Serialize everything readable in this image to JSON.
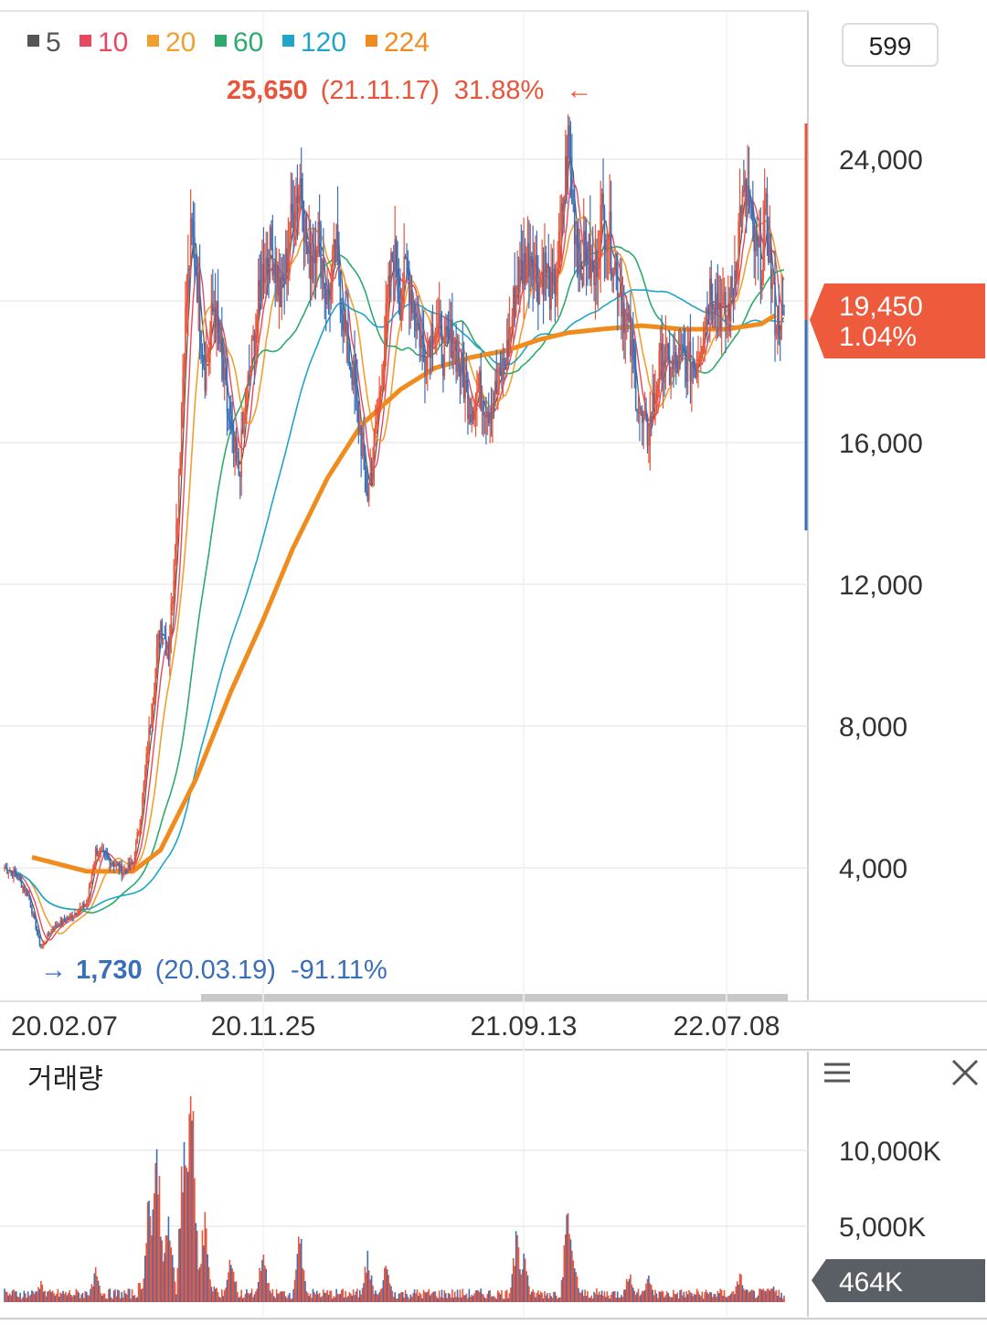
{
  "legend": [
    {
      "label": "5",
      "color": "#555555"
    },
    {
      "label": "10",
      "color": "#e8485f"
    },
    {
      "label": "20",
      "color": "#f0a030"
    },
    {
      "label": "60",
      "color": "#2eaa6a"
    },
    {
      "label": "120",
      "color": "#1ea5c8"
    },
    {
      "label": "224",
      "color": "#f08c1e"
    }
  ],
  "period_count": "599",
  "high_marker": {
    "price": "25,650",
    "date": "(21.11.17)",
    "pct": "31.88%",
    "arrow": "←",
    "color": "#e8553a"
  },
  "low_marker": {
    "price": "1,730",
    "date": "(20.03.19)",
    "pct": "-91.11%",
    "arrow": "→",
    "color": "#3a6fb8"
  },
  "current_badge": {
    "price": "19,450",
    "pct": "1.04%",
    "color": "#ee5a3c"
  },
  "volume_panel": {
    "title": "거래량",
    "menu_icon": "hamburger-menu-icon",
    "close_icon": "close-icon",
    "current_badge": "464K",
    "badge_color": "#5a5f66"
  },
  "chart_data": [
    {
      "type": "candlestick",
      "x_tick_labels": [
        "20.02.07",
        "20.11.25",
        "21.09.13",
        "22.07.08"
      ],
      "y_tick_labels": [
        "4,000",
        "8,000",
        "12,000",
        "16,000",
        "24,000"
      ],
      "y_ticks": [
        4000,
        8000,
        12000,
        16000,
        24000
      ],
      "ylim": [
        0,
        28000
      ],
      "grid": true,
      "up_color": "#e8553a",
      "down_color": "#3a6fb8",
      "close_points": [
        [
          "20.02.07",
          4000
        ],
        [
          "20.02.20",
          3800
        ],
        [
          "20.03.05",
          3200
        ],
        [
          "20.03.19",
          1730
        ],
        [
          "20.04.01",
          2300
        ],
        [
          "20.04.20",
          2600
        ],
        [
          "20.05.10",
          3000
        ],
        [
          "20.05.20",
          4500
        ],
        [
          "20.06.05",
          4200
        ],
        [
          "20.06.20",
          3900
        ],
        [
          "20.07.01",
          4100
        ],
        [
          "20.07.10",
          5500
        ],
        [
          "20.07.20",
          8000
        ],
        [
          "20.08.01",
          11000
        ],
        [
          "20.08.10",
          10000
        ],
        [
          "20.08.20",
          14000
        ],
        [
          "20.08.28",
          19000
        ],
        [
          "20.09.05",
          22000
        ],
        [
          "20.09.10",
          21000
        ],
        [
          "20.09.20",
          18000
        ],
        [
          "20.10.01",
          20000
        ],
        [
          "20.10.10",
          18000
        ],
        [
          "20.10.20",
          16000
        ],
        [
          "20.10.28",
          15000
        ],
        [
          "20.11.05",
          17000
        ],
        [
          "20.11.15",
          19000
        ],
        [
          "20.11.25",
          21000
        ],
        [
          "20.12.05",
          21500
        ],
        [
          "20.12.15",
          20000
        ],
        [
          "20.12.28",
          22500
        ],
        [
          "21.01.05",
          23500
        ],
        [
          "21.01.15",
          21000
        ],
        [
          "21.01.25",
          22000
        ],
        [
          "21.02.05",
          20000
        ],
        [
          "21.02.15",
          21500
        ],
        [
          "21.02.25",
          19000
        ],
        [
          "21.03.05",
          18000
        ],
        [
          "21.03.15",
          16000
        ],
        [
          "21.03.22",
          14500
        ],
        [
          "21.03.30",
          16000
        ],
        [
          "21.04.05",
          17500
        ],
        [
          "21.04.12",
          19500
        ],
        [
          "21.04.20",
          21500
        ],
        [
          "21.04.28",
          20000
        ],
        [
          "21.05.05",
          21000
        ],
        [
          "21.05.15",
          19500
        ],
        [
          "21.05.25",
          18500
        ],
        [
          "21.06.05",
          19500
        ],
        [
          "21.06.15",
          18500
        ],
        [
          "21.06.25",
          19000
        ],
        [
          "21.07.05",
          18000
        ],
        [
          "21.07.15",
          17000
        ],
        [
          "21.07.25",
          17500
        ],
        [
          "21.08.05",
          17000
        ],
        [
          "21.08.15",
          17500
        ],
        [
          "21.08.25",
          18500
        ],
        [
          "21.09.05",
          20500
        ],
        [
          "21.09.13",
          21000
        ],
        [
          "21.09.25",
          21500
        ],
        [
          "21.10.05",
          20500
        ],
        [
          "21.10.15",
          21000
        ],
        [
          "21.10.25",
          20000
        ],
        [
          "21.11.05",
          21500
        ],
        [
          "21.11.17",
          24500
        ],
        [
          "21.11.25",
          22500
        ],
        [
          "21.12.05",
          21000
        ],
        [
          "21.12.15",
          21500
        ],
        [
          "21.12.25",
          20500
        ],
        [
          "22.01.05",
          22500
        ],
        [
          "22.01.15",
          22000
        ],
        [
          "22.01.25",
          21000
        ],
        [
          "22.02.05",
          20000
        ],
        [
          "22.02.15",
          19000
        ],
        [
          "22.02.25",
          17500
        ],
        [
          "22.03.05",
          16500
        ],
        [
          "22.03.15",
          16200
        ],
        [
          "22.03.25",
          17500
        ],
        [
          "22.04.05",
          18500
        ],
        [
          "22.04.15",
          18000
        ],
        [
          "22.04.25",
          18200
        ],
        [
          "22.05.05",
          18400
        ],
        [
          "22.05.15",
          18200
        ],
        [
          "22.05.25",
          18300
        ],
        [
          "22.06.05",
          19500
        ],
        [
          "22.06.15",
          20500
        ],
        [
          "22.06.25",
          20000
        ],
        [
          "22.07.08",
          19500
        ],
        [
          "22.07.18",
          20500
        ],
        [
          "22.07.28",
          22500
        ],
        [
          "22.08.08",
          23000
        ],
        [
          "22.08.18",
          21500
        ],
        [
          "22.08.28",
          21000
        ],
        [
          "22.09.05",
          22500
        ],
        [
          "22.09.12",
          20500
        ],
        [
          "22.09.18",
          19450
        ]
      ],
      "ma224_points": [
        [
          "20.02.07",
          4300
        ],
        [
          "20.05.10",
          3900
        ],
        [
          "20.07.01",
          3900
        ],
        [
          "20.08.01",
          4500
        ],
        [
          "20.09.10",
          6500
        ],
        [
          "20.10.20",
          9000
        ],
        [
          "20.11.25",
          11000
        ],
        [
          "20.12.28",
          13000
        ],
        [
          "21.02.05",
          15000
        ],
        [
          "21.03.15",
          16500
        ],
        [
          "21.04.28",
          17500
        ],
        [
          "21.06.05",
          18100
        ],
        [
          "21.07.15",
          18400
        ],
        [
          "21.08.25",
          18600
        ],
        [
          "21.10.05",
          18900
        ],
        [
          "21.11.17",
          19100
        ],
        [
          "22.01.05",
          19200
        ],
        [
          "22.03.05",
          19300
        ],
        [
          "22.05.05",
          19200
        ],
        [
          "22.07.08",
          19200
        ],
        [
          "22.08.28",
          19350
        ],
        [
          "22.09.18",
          19600
        ]
      ]
    },
    {
      "type": "bar",
      "title": "거래량",
      "y_tick_labels": [
        "5,000K",
        "10,000K"
      ],
      "y_ticks": [
        5000,
        10000
      ],
      "ylim": [
        0,
        12500
      ],
      "spikes": [
        [
          "20.03.19",
          1500
        ],
        [
          "20.05.20",
          2500
        ],
        [
          "20.07.20",
          6000
        ],
        [
          "20.07.28",
          8000
        ],
        [
          "20.08.10",
          5000
        ],
        [
          "20.08.28",
          9500
        ],
        [
          "20.09.05",
          12000
        ],
        [
          "20.09.20",
          4500
        ],
        [
          "20.10.20",
          3500
        ],
        [
          "20.11.25",
          4000
        ],
        [
          "21.01.05",
          5200
        ],
        [
          "21.03.22",
          3500
        ],
        [
          "21.04.12",
          3000
        ],
        [
          "21.09.05",
          5000
        ],
        [
          "21.09.13",
          3800
        ],
        [
          "21.11.17",
          7000
        ],
        [
          "21.11.25",
          3500
        ],
        [
          "22.02.15",
          2500
        ],
        [
          "22.03.15",
          2000
        ],
        [
          "22.07.28",
          2200
        ],
        [
          "22.09.12",
          1500
        ]
      ],
      "current_value": "464K"
    }
  ]
}
